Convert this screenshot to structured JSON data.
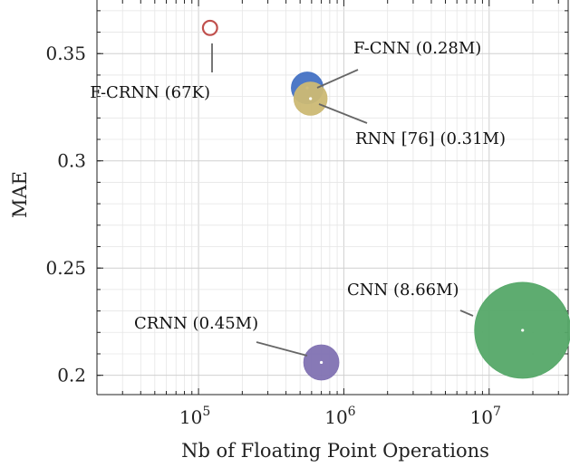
{
  "chart_data": {
    "type": "scatter",
    "title": "",
    "xlabel": "Nb of Floating Point Operations",
    "ylabel": "MAE",
    "xscale": "log",
    "xlim": [
      20000,
      35000000
    ],
    "ylim": [
      0.191,
      0.375
    ],
    "grid": true,
    "x_ticks": [
      {
        "value": 100000,
        "base": "10",
        "exp": "5"
      },
      {
        "value": 1000000,
        "base": "10",
        "exp": "6"
      },
      {
        "value": 10000000,
        "base": "10",
        "exp": "7"
      }
    ],
    "y_ticks": [
      {
        "value": 0.2,
        "label": "0.2"
      },
      {
        "value": 0.25,
        "label": "0.25"
      },
      {
        "value": 0.3,
        "label": "0.3"
      },
      {
        "value": 0.35,
        "label": "0.35"
      }
    ],
    "points": [
      {
        "label": "F-CRNN (67K)",
        "x": 120000,
        "y": 0.362,
        "size_rel": 0.022,
        "color": "#ffffff",
        "stroke": "#c0504d"
      },
      {
        "label": "F-CNN (0.28M)",
        "x": 560000,
        "y": 0.334,
        "size_rel": 0.11,
        "color": "#4472c4",
        "stroke": "#4472c4"
      },
      {
        "label": "RNN [76] (0.31M)",
        "x": 590000,
        "y": 0.329,
        "size_rel": 0.12,
        "color": "#ccb974",
        "stroke": "#ccb974"
      },
      {
        "label": "CRNN (0.45M)",
        "x": 700000,
        "y": 0.206,
        "size_rel": 0.135,
        "color": "#8172b2",
        "stroke": "#8172b2"
      },
      {
        "label": "CNN (8.66M)",
        "x": 17000000,
        "y": 0.221,
        "size_rel": 1.0,
        "color": "#55a868",
        "stroke": "#55a868"
      }
    ]
  }
}
